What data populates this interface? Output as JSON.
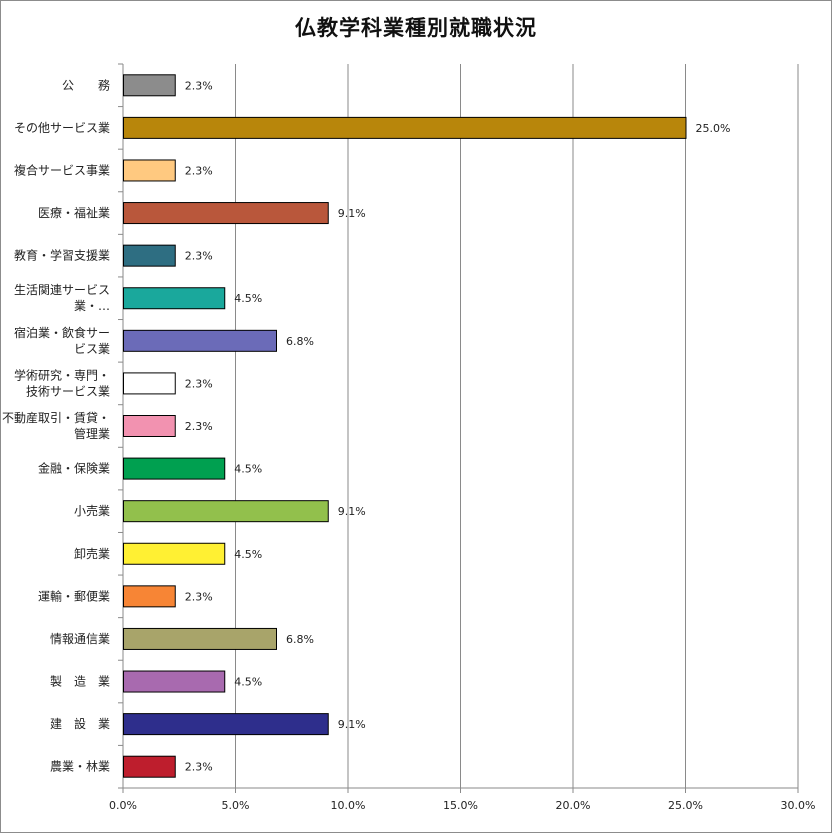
{
  "chart_data": {
    "type": "bar",
    "orientation": "horizontal",
    "title": "仏教学科業種別就職状況",
    "xlabel": "",
    "ylabel": "",
    "xlim": [
      0,
      30
    ],
    "ticks": [
      "0.0%",
      "5.0%",
      "10.0%",
      "15.0%",
      "20.0%",
      "25.0%",
      "30.0%"
    ],
    "tick_values": [
      0,
      5,
      10,
      15,
      20,
      25,
      30
    ],
    "grid": true,
    "legend": "none",
    "categories": [
      {
        "lines": [
          "公　　務"
        ],
        "value": 2.3,
        "label": "2.3%",
        "color": "#8c8c8c"
      },
      {
        "lines": [
          "その他サービス業"
        ],
        "value": 25.0,
        "label": "25.0%",
        "color": "#b8860b"
      },
      {
        "lines": [
          "複合サービス事業"
        ],
        "value": 2.3,
        "label": "2.3%",
        "color": "#ffc980"
      },
      {
        "lines": [
          "医療・福祉業"
        ],
        "value": 9.1,
        "label": "9.1%",
        "color": "#b9573b"
      },
      {
        "lines": [
          "教育・学習支援業"
        ],
        "value": 2.3,
        "label": "2.3%",
        "color": "#2e6e82"
      },
      {
        "lines": [
          "生活関連サービス",
          "業・…"
        ],
        "value": 4.5,
        "label": "4.5%",
        "color": "#1aa89c"
      },
      {
        "lines": [
          "宿泊業・飲食サー",
          "ビス業"
        ],
        "value": 6.8,
        "label": "6.8%",
        "color": "#6b6bb8"
      },
      {
        "lines": [
          "学術研究・専門・",
          "技術サービス業"
        ],
        "value": 2.3,
        "label": "2.3%",
        "color": "#ffffff"
      },
      {
        "lines": [
          "不動産取引・賃貸・",
          "管理業"
        ],
        "value": 2.3,
        "label": "2.3%",
        "color": "#f292b0"
      },
      {
        "lines": [
          "金融・保険業"
        ],
        "value": 4.5,
        "label": "4.5%",
        "color": "#00a050"
      },
      {
        "lines": [
          "小売業"
        ],
        "value": 9.1,
        "label": "9.1%",
        "color": "#92c04c"
      },
      {
        "lines": [
          "卸売業"
        ],
        "value": 4.5,
        "label": "4.5%",
        "color": "#fff033"
      },
      {
        "lines": [
          "運輸・郵便業"
        ],
        "value": 2.3,
        "label": "2.3%",
        "color": "#f78535"
      },
      {
        "lines": [
          "情報通信業"
        ],
        "value": 6.8,
        "label": "6.8%",
        "color": "#a8a46a"
      },
      {
        "lines": [
          "製　造　業"
        ],
        "value": 4.5,
        "label": "4.5%",
        "color": "#a86aaf"
      },
      {
        "lines": [
          "建　設　業"
        ],
        "value": 9.1,
        "label": "9.1%",
        "color": "#2e2e8c"
      },
      {
        "lines": [
          "農業・林業"
        ],
        "value": 2.3,
        "label": "2.3%",
        "color": "#be1e2d"
      }
    ]
  }
}
